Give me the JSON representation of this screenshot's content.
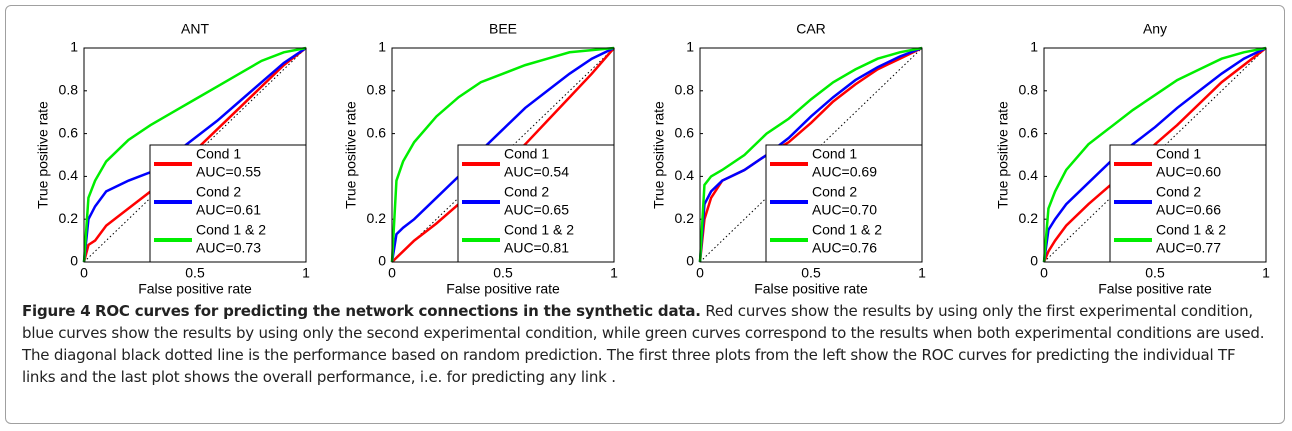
{
  "chart_data": [
    {
      "type": "line",
      "title": "ANT",
      "xlabel": "False positive rate",
      "ylabel": "True positive rate",
      "xlim": [
        0,
        1
      ],
      "ylim": [
        0,
        1
      ],
      "xticks": [
        0,
        0.5,
        1
      ],
      "yticks": [
        0,
        0.2,
        0.4,
        0.6,
        0.8,
        1
      ],
      "legend": "lower right",
      "x": [
        0,
        0.02,
        0.05,
        0.1,
        0.2,
        0.3,
        0.4,
        0.5,
        0.6,
        0.7,
        0.8,
        0.9,
        1
      ],
      "series": [
        {
          "name": "Cond 1",
          "note": "AUC=0.55",
          "color": "#ff0000",
          "values": [
            0,
            0.08,
            0.1,
            0.17,
            0.25,
            0.33,
            0.43,
            0.52,
            0.62,
            0.72,
            0.82,
            0.92,
            1
          ]
        },
        {
          "name": "Cond 2",
          "note": "AUC=0.61",
          "color": "#0000ff",
          "values": [
            0,
            0.2,
            0.26,
            0.33,
            0.38,
            0.42,
            0.5,
            0.58,
            0.66,
            0.75,
            0.84,
            0.93,
            1
          ]
        },
        {
          "name": "Cond 1 & 2",
          "note": "AUC=0.73",
          "color": "#00ee00",
          "values": [
            0,
            0.3,
            0.38,
            0.47,
            0.57,
            0.64,
            0.7,
            0.76,
            0.82,
            0.88,
            0.94,
            0.98,
            1
          ]
        }
      ]
    },
    {
      "type": "line",
      "title": "BEE",
      "xlabel": "False positive rate",
      "ylabel": "True positive rate",
      "xlim": [
        0,
        1
      ],
      "ylim": [
        0,
        1
      ],
      "xticks": [
        0,
        0.5,
        1
      ],
      "yticks": [
        0,
        0.2,
        0.6,
        0.8,
        1
      ],
      "legend": "lower right",
      "x": [
        0,
        0.02,
        0.05,
        0.1,
        0.2,
        0.3,
        0.4,
        0.5,
        0.6,
        0.7,
        0.8,
        0.9,
        1
      ],
      "series": [
        {
          "name": "Cond 1",
          "note": "AUC=0.54",
          "color": "#ff0000",
          "values": [
            0,
            0.02,
            0.05,
            0.1,
            0.18,
            0.27,
            0.36,
            0.45,
            0.55,
            0.66,
            0.77,
            0.88,
            1
          ]
        },
        {
          "name": "Cond 2",
          "note": "AUC=0.65",
          "color": "#0000ff",
          "values": [
            0,
            0.13,
            0.16,
            0.2,
            0.3,
            0.4,
            0.52,
            0.62,
            0.72,
            0.8,
            0.88,
            0.95,
            1
          ]
        },
        {
          "name": "Cond 1 & 2",
          "note": "AUC=0.81",
          "color": "#00ee00",
          "values": [
            0,
            0.38,
            0.47,
            0.56,
            0.68,
            0.77,
            0.84,
            0.88,
            0.92,
            0.95,
            0.98,
            0.99,
            1
          ]
        }
      ]
    },
    {
      "type": "line",
      "title": "CAR",
      "xlabel": "False positive rate",
      "ylabel": "True positive rate",
      "xlim": [
        0,
        1
      ],
      "ylim": [
        0,
        1
      ],
      "xticks": [
        0,
        0.5,
        1
      ],
      "yticks": [
        0,
        0.2,
        0.4,
        0.6,
        0.8,
        1
      ],
      "legend": "lower right",
      "x": [
        0,
        0.02,
        0.05,
        0.1,
        0.2,
        0.3,
        0.4,
        0.5,
        0.6,
        0.7,
        0.8,
        0.9,
        1
      ],
      "series": [
        {
          "name": "Cond 1",
          "note": "AUC=0.69",
          "color": "#ff0000",
          "values": [
            0,
            0.2,
            0.3,
            0.38,
            0.43,
            0.5,
            0.56,
            0.65,
            0.75,
            0.83,
            0.9,
            0.95,
            1
          ]
        },
        {
          "name": "Cond 2",
          "note": "AUC=0.70",
          "color": "#0000ff",
          "values": [
            0,
            0.27,
            0.33,
            0.38,
            0.43,
            0.5,
            0.58,
            0.68,
            0.77,
            0.85,
            0.91,
            0.96,
            1
          ]
        },
        {
          "name": "Cond 1 & 2",
          "note": "AUC=0.76",
          "color": "#00ee00",
          "values": [
            0,
            0.36,
            0.4,
            0.43,
            0.5,
            0.6,
            0.67,
            0.76,
            0.84,
            0.9,
            0.95,
            0.98,
            1
          ]
        }
      ]
    },
    {
      "type": "line",
      "title": "Any",
      "xlabel": "False positive rate",
      "ylabel": "True positive rate",
      "xlim": [
        0,
        1
      ],
      "ylim": [
        0,
        1
      ],
      "xticks": [
        0,
        0.5,
        1
      ],
      "yticks": [
        0,
        0.2,
        0.4,
        0.6,
        0.8,
        1
      ],
      "legend": "lower right",
      "x": [
        0,
        0.02,
        0.05,
        0.1,
        0.2,
        0.3,
        0.4,
        0.5,
        0.6,
        0.7,
        0.8,
        0.9,
        1
      ],
      "series": [
        {
          "name": "Cond 1",
          "note": "AUC=0.60",
          "color": "#ff0000",
          "values": [
            0,
            0.05,
            0.1,
            0.17,
            0.27,
            0.36,
            0.45,
            0.55,
            0.64,
            0.74,
            0.84,
            0.92,
            1
          ]
        },
        {
          "name": "Cond 2",
          "note": "AUC=0.66",
          "color": "#0000ff",
          "values": [
            0,
            0.15,
            0.2,
            0.27,
            0.37,
            0.47,
            0.55,
            0.63,
            0.72,
            0.8,
            0.88,
            0.95,
            1
          ]
        },
        {
          "name": "Cond 1 & 2",
          "note": "AUC=0.77",
          "color": "#00ee00",
          "values": [
            0,
            0.25,
            0.33,
            0.43,
            0.55,
            0.63,
            0.71,
            0.78,
            0.85,
            0.9,
            0.95,
            0.98,
            1
          ]
        }
      ]
    }
  ],
  "caption": {
    "label": "Figure 4",
    "title": "ROC curves for predicting the network connections in the synthetic data.",
    "text": "Red curves show the results by using only the first experimental condition, blue curves show the results by using only the second experimental condition, while green curves correspond to the results when both experimental conditions are used. The diagonal black dotted line is the performance based on random prediction. The first three plots from the left show the ROC curves for predicting the individual TF links and the last plot shows the overall performance, i.e. for predicting any link ."
  }
}
